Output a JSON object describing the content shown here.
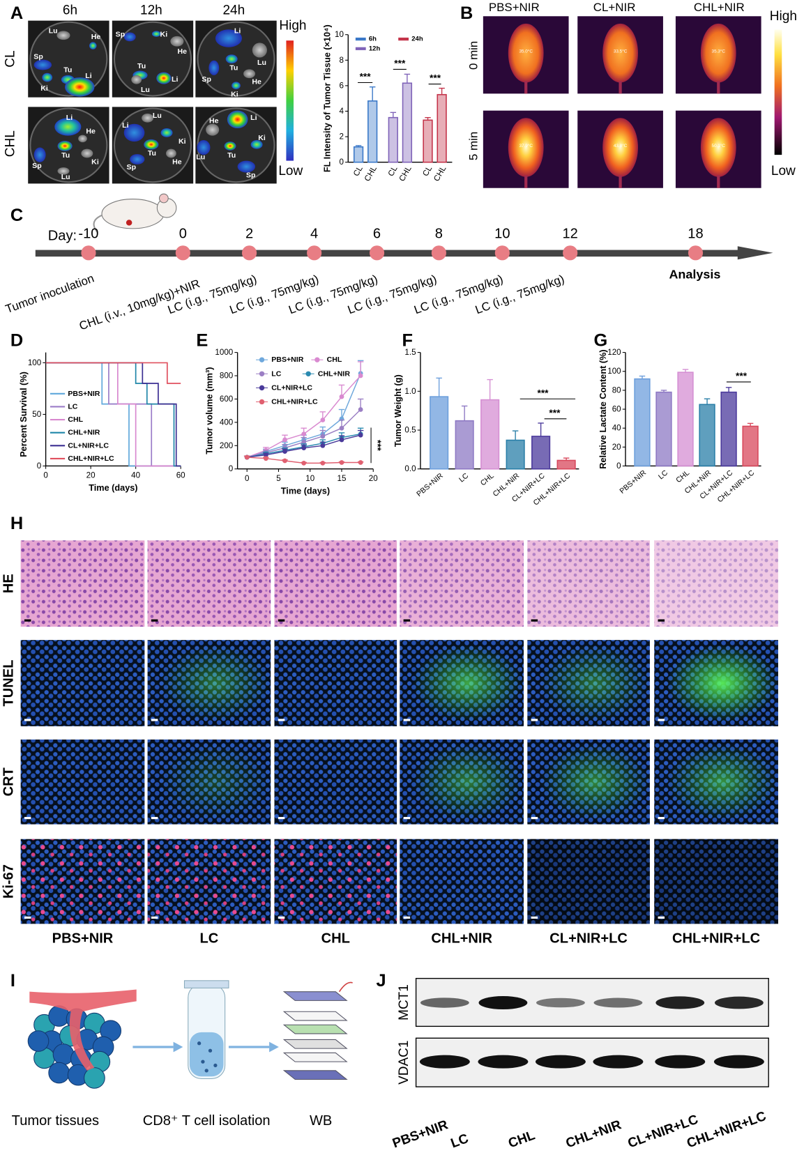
{
  "panel_letters": [
    "A",
    "B",
    "C",
    "D",
    "E",
    "F",
    "G",
    "H",
    "I",
    "J"
  ],
  "panel_a": {
    "columns": [
      "6h",
      "12h",
      "24h"
    ],
    "rows": [
      "CL",
      "CHL"
    ],
    "scale_high": "High",
    "scale_low": "Low",
    "organ_labels": [
      [
        "Lu",
        "He",
        "Sp",
        "Tu",
        "Li",
        "Ki"
      ],
      [
        "Sp",
        "Ki",
        "He",
        "Tu",
        "Li",
        "Lu"
      ],
      [
        "Li",
        "Lu",
        "Tu",
        "Sp",
        "He",
        "Ki"
      ],
      [
        "Li",
        "He",
        "Tu",
        "Sp",
        "Ki",
        "Lu"
      ],
      [
        "Lu",
        "Li",
        "Ki",
        "Tu",
        "He",
        "Sp"
      ],
      [
        "He",
        "Li",
        "Ki",
        "Lu",
        "Tu",
        "Sp"
      ]
    ]
  },
  "panel_b": {
    "columns": [
      "PBS+NIR",
      "CL+NIR",
      "CHL+NIR"
    ],
    "rows": [
      "0 min",
      "5 min"
    ],
    "temperatures": [
      [
        "35.0°C",
        "33.5°C",
        "35.3°C"
      ],
      [
        "37.9°C",
        "43.8°C",
        "50.1°C"
      ]
    ],
    "scale_high": "High",
    "scale_low": "Low"
  },
  "panel_c": {
    "day_label": "Day:",
    "days": [
      -10,
      0,
      2,
      4,
      6,
      8,
      10,
      12,
      18
    ],
    "events": [
      "Tumor inoculation",
      "CHL (i.v., 10mg/kg)+NIR",
      "LC (i.g., 75mg/kg)",
      "LC (i.g., 75mg/kg)",
      "LC (i.g., 75mg/kg)",
      "LC (i.g., 75mg/kg)",
      "LC (i.g., 75mg/kg)",
      "LC (i.g., 75mg/kg)",
      "Analysis"
    ]
  },
  "chart_data": [
    {
      "type": "bar",
      "y_label": "FL Intensity of Tumor Tissue (×10⁴)",
      "categories": [
        "CL",
        "CHL"
      ],
      "series": [
        {
          "name": "6h",
          "color": "#3a78c8",
          "values": [
            1.2,
            4.8
          ],
          "errors": [
            0.1,
            1.1
          ]
        },
        {
          "name": "12h",
          "color": "#7f63b8",
          "values": [
            3.5,
            6.2
          ],
          "errors": [
            0.4,
            0.7
          ]
        },
        {
          "name": "24h",
          "color": "#c4344a",
          "values": [
            3.3,
            5.3
          ],
          "errors": [
            0.2,
            0.5
          ]
        }
      ],
      "ylim": [
        0,
        10
      ],
      "yticks": [
        0,
        2,
        4,
        6,
        8,
        10
      ],
      "annotations": [
        "***",
        "***",
        "***"
      ]
    },
    {
      "type": "step",
      "y_label": "Percent Survival (%)",
      "x_label": "Time (days)",
      "series": [
        {
          "name": "PBS+NIR",
          "color": "#5fa8dc",
          "x": [
            0,
            25,
            37
          ],
          "values": [
            100,
            60,
            0
          ]
        },
        {
          "name": "LC",
          "color": "#9b7cc8",
          "x": [
            0,
            28,
            47
          ],
          "values": [
            100,
            60,
            0
          ]
        },
        {
          "name": "CHL",
          "color": "#d888cf",
          "x": [
            0,
            32,
            40
          ],
          "values": [
            100,
            60,
            0
          ]
        },
        {
          "name": "CHL+NIR",
          "color": "#1f86a8",
          "x": [
            0,
            40,
            45,
            57
          ],
          "values": [
            100,
            80,
            60,
            0
          ]
        },
        {
          "name": "CL+NIR+LC",
          "color": "#3c2f92",
          "x": [
            0,
            43,
            50,
            58
          ],
          "values": [
            100,
            80,
            60,
            0
          ]
        },
        {
          "name": "CHL+NIR+LC",
          "color": "#e0505e",
          "x": [
            0,
            54
          ],
          "values": [
            100,
            80
          ]
        }
      ],
      "xlim": [
        0,
        60
      ],
      "xticks": [
        0,
        20,
        40,
        60
      ],
      "ylim": [
        0,
        100
      ],
      "yticks": [
        0,
        50,
        100
      ]
    },
    {
      "type": "line",
      "y_label": "Tumor volume (mm³)",
      "x_label": "Time (days)",
      "x": [
        0,
        3,
        6,
        9,
        12,
        15,
        18
      ],
      "series": [
        {
          "name": "PBS+NIR",
          "color": "#6fa8dc",
          "values": [
            100,
            150,
            200,
            250,
            300,
            430,
            820
          ],
          "errors": [
            10,
            20,
            30,
            40,
            60,
            80,
            110
          ]
        },
        {
          "name": "CHL",
          "color": "#d98ad0",
          "values": [
            100,
            160,
            250,
            300,
            420,
            620,
            800
          ],
          "errors": [
            10,
            25,
            40,
            50,
            70,
            100,
            120
          ]
        },
        {
          "name": "LC",
          "color": "#9b7fc4",
          "values": [
            100,
            140,
            180,
            230,
            280,
            350,
            510
          ],
          "errors": [
            10,
            20,
            30,
            40,
            50,
            70,
            90
          ]
        },
        {
          "name": "CHL+NIR",
          "color": "#2a8ab0",
          "values": [
            100,
            130,
            160,
            190,
            220,
            270,
            300
          ],
          "errors": [
            10,
            15,
            20,
            25,
            30,
            40,
            50
          ]
        },
        {
          "name": "CL+NIR+LC",
          "color": "#4a3a9a",
          "values": [
            100,
            120,
            150,
            180,
            200,
            250,
            290
          ],
          "errors": [
            10,
            15,
            20,
            25,
            30,
            35,
            40
          ]
        },
        {
          "name": "CHL+NIR+LC",
          "color": "#e06070",
          "values": [
            100,
            90,
            70,
            50,
            50,
            55,
            55
          ],
          "errors": [
            10,
            10,
            8,
            6,
            5,
            5,
            5
          ]
        }
      ],
      "xlim": [
        -1.5,
        20
      ],
      "xticks": [
        0,
        5,
        10,
        15,
        20
      ],
      "ylim": [
        0,
        1000
      ],
      "yticks": [
        0,
        200,
        400,
        600,
        800,
        1000
      ],
      "annotations": [
        "***"
      ]
    },
    {
      "type": "bar",
      "y_label": "Tumor Weight (g)",
      "categories": [
        "PBS+NIR",
        "LC",
        "CHL",
        "CHL+NIR",
        "CL+NIR+LC",
        "CHL+NIR+LC"
      ],
      "values": [
        0.93,
        0.62,
        0.89,
        0.37,
        0.42,
        0.11
      ],
      "errors": [
        0.24,
        0.19,
        0.26,
        0.12,
        0.17,
        0.03
      ],
      "colors": [
        "#6d9fdc",
        "#8e79c4",
        "#d58fd3",
        "#2a7fa8",
        "#4b3a9c",
        "#d8485c"
      ],
      "ylim": [
        0,
        1.5
      ],
      "yticks": [
        {
          "value": 0,
          "label": "0.0"
        },
        0.5,
        {
          "value": 1,
          "label": "1.0"
        },
        1.5
      ],
      "annotations": [
        "***",
        "***"
      ]
    },
    {
      "type": "bar",
      "y_label": "Relative Lactate Content (%)",
      "categories": [
        "PBS+NIR",
        "LC",
        "CHL",
        "CHL+NIR",
        "CL+NIR+LC",
        "CHL+NIR+LC"
      ],
      "values": [
        92,
        78,
        99,
        65,
        78,
        42
      ],
      "errors": [
        3,
        2,
        3,
        6,
        5,
        3
      ],
      "colors": [
        "#6d9fdc",
        "#8e79c4",
        "#d58fd3",
        "#2a7fa8",
        "#4b3a9c",
        "#d8485c"
      ],
      "ylim": [
        0,
        120
      ],
      "yticks": [
        0,
        20,
        40,
        60,
        80,
        100,
        120
      ],
      "annotations": [
        "***"
      ]
    }
  ],
  "panel_h": {
    "rows": [
      "HE",
      "TUNEL",
      "CRT",
      "Ki-67"
    ],
    "columns": [
      "PBS+NIR",
      "LC",
      "CHL",
      "CHL+NIR",
      "CL+NIR+LC",
      "CHL+NIR+LC"
    ]
  },
  "panel_i": {
    "steps": [
      "Tumor tissues",
      "CD8⁺ T cell isolation",
      "WB"
    ]
  },
  "panel_j": {
    "bands": [
      "MCT1",
      "VDAC1"
    ],
    "lanes": [
      "PBS+NIR",
      "LC",
      "CHL",
      "CHL+NIR",
      "CL+NIR+LC",
      "CHL+NIR+LC"
    ]
  }
}
